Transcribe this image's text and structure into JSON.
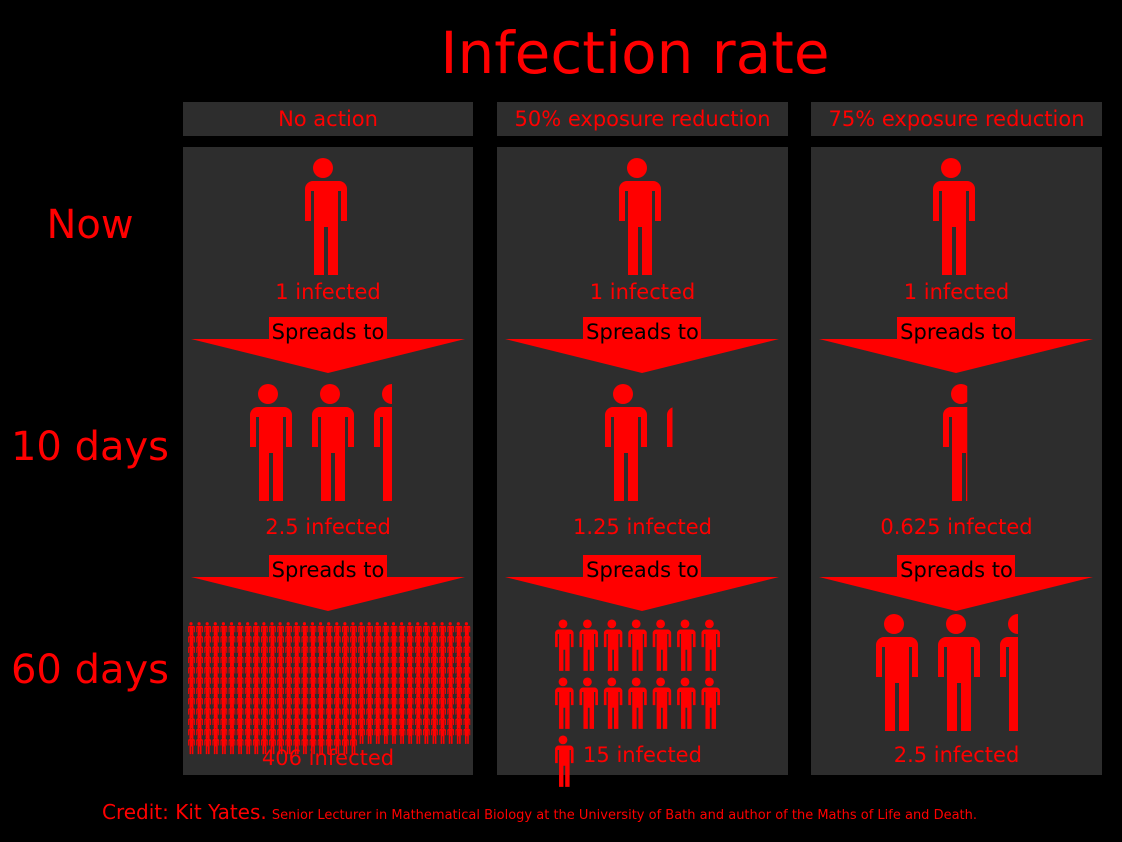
{
  "title": "Infection rate",
  "rows": [
    "Now",
    "10 days",
    "60 days"
  ],
  "columns": [
    {
      "header": "No action",
      "now": 1,
      "now_label": "1 infected",
      "spread": "Spreads to",
      "day10": 2.5,
      "day10_label": "2.5 infected",
      "day60": 406,
      "day60_label": "406 infected"
    },
    {
      "header": "50% exposure reduction",
      "now": 1,
      "now_label": "1 infected",
      "spread": "Spreads to",
      "day10": 1.25,
      "day10_label": "1.25 infected",
      "day60": 15,
      "day60_label": "15 infected"
    },
    {
      "header": "75% exposure reduction",
      "now": 1,
      "now_label": "1 infected",
      "spread": "Spreads to",
      "day10": 0.625,
      "day10_label": "0.625 infected",
      "day60": 2.5,
      "day60_label": "2.5 infected"
    }
  ],
  "credit": {
    "main": "Credit: Kit Yates.",
    "detail": "Senior Lecturer in Mathematical Biology at the University of Bath and author of the Maths of Life and Death."
  },
  "colors": {
    "accent": "#ff0000",
    "panel": "#2d2d2d",
    "background": "#000000"
  },
  "icons": {
    "person": "person-icon",
    "arrow": "down-arrow-icon"
  }
}
